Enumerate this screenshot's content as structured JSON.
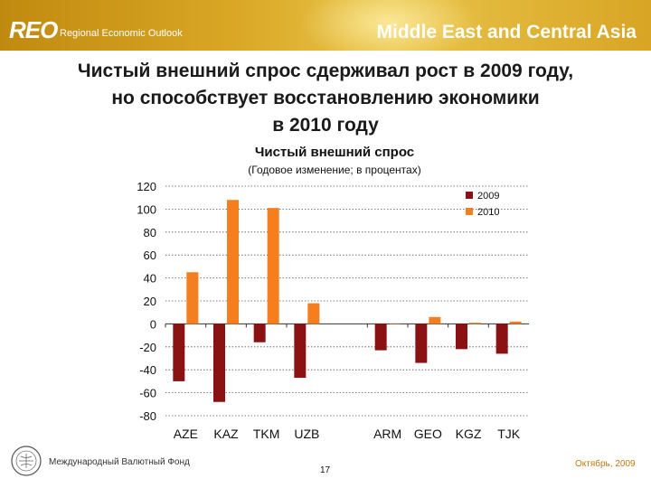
{
  "header": {
    "reo": "REO",
    "reo_sub": "Regional Economic Outlook",
    "region": "Middle East and Central Asia"
  },
  "slide_title_lines": [
    "Чистый внешний спрос сдерживал рост в 2009 году,",
    "но способствует восстановлению экономики",
    "в 2010 году"
  ],
  "colors": {
    "s2009": "#8b1212",
    "s2010": "#f57e1e",
    "banner": "#d9a624",
    "footer_date": "#c07a10"
  },
  "chart_data": {
    "type": "bar",
    "title": "Чистый внешний спрос",
    "subtitle": "(Годовое изменение; в процентах)",
    "categories": [
      "AZE",
      "KAZ",
      "TKM",
      "UZB",
      "ARM",
      "GEO",
      "KGZ",
      "TJK"
    ],
    "series": [
      {
        "name": "2009",
        "values": [
          -50,
          -68,
          -16,
          -47,
          -23,
          -34,
          -22,
          -26
        ]
      },
      {
        "name": "2010",
        "values": [
          45,
          108,
          101,
          18,
          0,
          6,
          1,
          2
        ]
      }
    ],
    "ylim": [
      -80,
      120
    ],
    "yticks": [
      -80,
      -60,
      -40,
      -20,
      0,
      20,
      40,
      60,
      80,
      100,
      120
    ],
    "grid": true,
    "legend": "top-right"
  },
  "footer": {
    "left": "Международный Валютный Фонд",
    "page": "17",
    "right": "Октябрь, 2009"
  }
}
